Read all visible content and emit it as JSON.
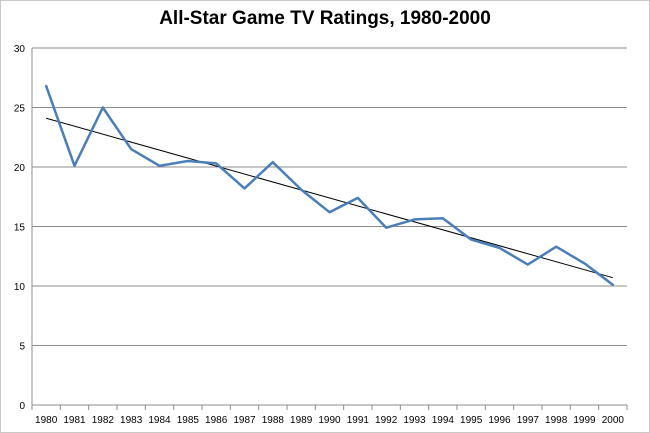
{
  "chart_data": {
    "type": "line",
    "title": "All-Star Game TV Ratings, 1980-2000",
    "xlabel": "",
    "ylabel": "",
    "ylim": [
      0,
      30
    ],
    "yticks": [
      "0",
      "5",
      "10",
      "15",
      "20",
      "25",
      "30"
    ],
    "categories": [
      "1980",
      "1981",
      "1982",
      "1983",
      "1984",
      "1985",
      "1986",
      "1987",
      "1988",
      "1989",
      "1990",
      "1991",
      "1992",
      "1993",
      "1994",
      "1995",
      "1996",
      "1997",
      "1998",
      "1999",
      "2000"
    ],
    "series": [
      {
        "values": [
          26.8,
          20.1,
          25.0,
          21.5,
          20.1,
          20.5,
          20.3,
          18.2,
          20.4,
          18.1,
          16.2,
          17.4,
          14.9,
          15.6,
          15.7,
          13.9,
          13.2,
          11.8,
          13.3,
          11.9,
          10.1
        ]
      }
    ],
    "trendline": {
      "start": 24.1,
      "end": 10.7
    },
    "grid": true,
    "legend": "none",
    "colors": {
      "series": "#4a7ebb",
      "trend": "#000000",
      "grid": "#8c8c8c"
    }
  }
}
